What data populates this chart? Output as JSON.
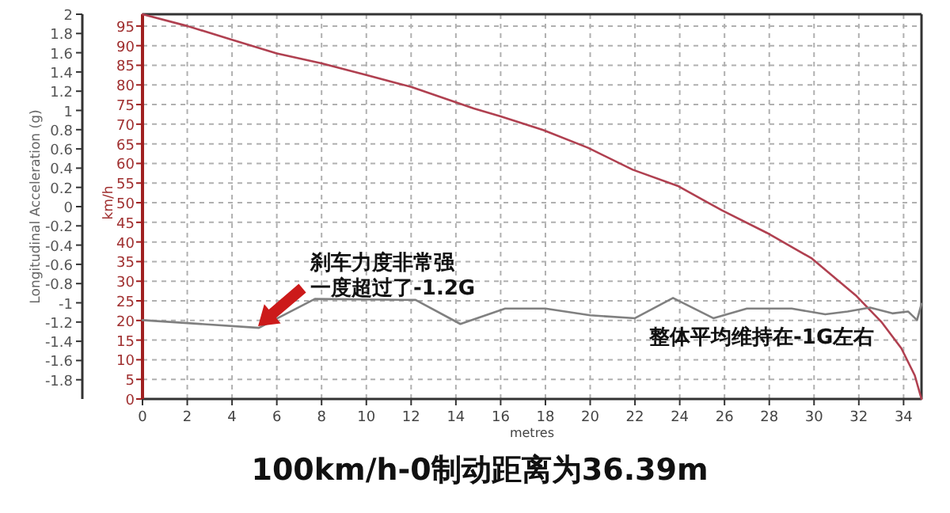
{
  "chart_data": {
    "type": "line",
    "title": "100km/h-0制动距离为36.39m",
    "xlabel": "metres",
    "ylabel": "Longitudinal Acceleration (g)",
    "y2label": "km/h",
    "xlim": [
      0,
      34.8
    ],
    "xticks": [
      0,
      2,
      4,
      6,
      8,
      10,
      12,
      14,
      16,
      18,
      20,
      22,
      24,
      26,
      28,
      30,
      32,
      34
    ],
    "ylim": [
      -2,
      2
    ],
    "yticks": [
      2,
      1.8,
      1.6,
      1.4,
      1.2,
      1,
      0.8,
      0.6,
      0.4,
      0.2,
      0,
      -0.2,
      -0.4,
      -0.6,
      -0.8,
      -1,
      -1.2,
      -1.4,
      -1.6,
      -1.8
    ],
    "y2lim": [
      0,
      98
    ],
    "y2ticks": [
      0,
      5,
      10,
      15,
      20,
      25,
      30,
      35,
      40,
      45,
      50,
      55,
      60,
      65,
      70,
      75,
      80,
      85,
      90,
      95
    ],
    "grid": true,
    "marker": "none",
    "line_style": "solid",
    "series": [
      {
        "color": "#b04050",
        "axis": "y2",
        "x": [
          0,
          2,
          4,
          6,
          8,
          10,
          12,
          14.8,
          16,
          17.9,
          19.9,
          21.9,
          23.9,
          25.9,
          27.9,
          29.9,
          31.9,
          33,
          33.9,
          34.5,
          34.8
        ],
        "values": [
          98,
          95,
          91.5,
          88,
          85.5,
          82.5,
          79.5,
          74,
          72,
          68.5,
          64,
          58.4,
          54.3,
          48,
          42.3,
          35.8,
          26.2,
          19.7,
          12.9,
          6,
          0
        ]
      },
      {
        "color": "#808080",
        "axis": "y",
        "x": [
          0,
          5.2,
          7.7,
          12.2,
          14.2,
          16.2,
          18,
          20,
          22,
          23.7,
          25.5,
          27,
          29,
          30.5,
          31.5,
          32.5,
          33.5,
          34.2,
          34.6,
          34.8
        ],
        "values": [
          -1.18,
          -1.26,
          -0.96,
          -0.97,
          -1.22,
          -1.06,
          -1.06,
          -1.13,
          -1.16,
          -0.95,
          -1.16,
          -1.06,
          -1.06,
          -1.12,
          -1.09,
          -1.05,
          -1.11,
          -1.09,
          -1.18,
          -1.01
        ]
      }
    ],
    "annotations": [
      "刹车力度非常强",
      "一度超过了-1.2G",
      "整体平均维持在-1G左右"
    ]
  }
}
